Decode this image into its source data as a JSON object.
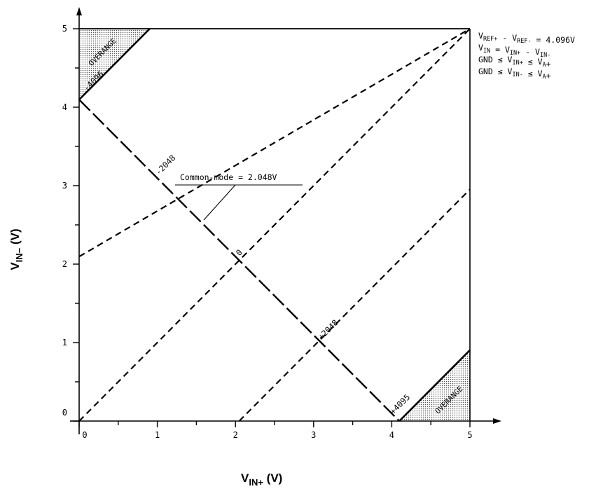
{
  "chart_data": {
    "type": "line",
    "title": "",
    "xlabel": {
      "main": "V",
      "sub": "IN+",
      "unit": "(V)"
    },
    "ylabel": {
      "main": "V",
      "sub": "IN−",
      "unit": "(V)"
    },
    "xlim": [
      0,
      5
    ],
    "ylim": [
      0,
      5
    ],
    "x_ticks": [
      "0",
      "1",
      "2",
      "3",
      "4",
      "5"
    ],
    "y_ticks": [
      "0",
      "1",
      "2",
      "3",
      "4",
      "5"
    ],
    "grid": false,
    "series": [
      {
        "style": "dashed",
        "x": [
          0,
          5
        ],
        "y": [
          2.096,
          5
        ]
      },
      {
        "style": "dashed",
        "x": [
          0,
          5
        ],
        "y": [
          0,
          5
        ]
      },
      {
        "style": "dashed",
        "x": [
          2.048,
          5
        ],
        "y": [
          0,
          2.952
        ]
      },
      {
        "style": "long-dash",
        "x": [
          0,
          4.096
        ],
        "y": [
          4.096,
          0
        ]
      },
      {
        "style": "solid",
        "x": [
          0,
          0.904
        ],
        "y": [
          4.096,
          5
        ]
      },
      {
        "style": "solid",
        "x": [
          4.096,
          5
        ],
        "y": [
          0,
          0.904
        ]
      }
    ],
    "code_labels": [
      {
        "text": "-4096",
        "x": 0.1,
        "y": 4.2
      },
      {
        "text": "-2048",
        "x": 1.02,
        "y": 3.13
      },
      {
        "text": "0",
        "x": 2.05,
        "y": 2.1
      },
      {
        "text": "+2048",
        "x": 3.1,
        "y": 1.03
      },
      {
        "text": "+4095",
        "x": 4.02,
        "y": 0.08
      }
    ],
    "regions": [
      {
        "label": "OVERANGE",
        "vertices": [
          [
            0,
            5
          ],
          [
            0,
            4.096
          ],
          [
            0.904,
            5
          ]
        ]
      },
      {
        "label": "OVERANGE",
        "vertices": [
          [
            4.096,
            0
          ],
          [
            5,
            0
          ],
          [
            5,
            0.904
          ]
        ]
      }
    ],
    "callout": {
      "text": "Common-mode = 2.048V"
    },
    "notes": [
      [
        {
          "t": "V"
        },
        {
          "t": "REF+",
          "s": 1
        },
        {
          "t": " - V"
        },
        {
          "t": "REF-",
          "s": 1
        },
        {
          "t": " = 4.096V"
        }
      ],
      [
        {
          "t": "V"
        },
        {
          "t": "IN",
          "s": 1
        },
        {
          "t": " = V"
        },
        {
          "t": "IN+",
          "s": 1
        },
        {
          "t": " - V"
        },
        {
          "t": "IN-",
          "s": 1
        }
      ],
      [
        {
          "t": "GND ≤ V"
        },
        {
          "t": "IN+",
          "s": 1
        },
        {
          "t": " ≤ V"
        },
        {
          "t": "A",
          "s": 1
        },
        {
          "t": "+"
        }
      ],
      [
        {
          "t": "GND ≤ V"
        },
        {
          "t": "IN-",
          "s": 1
        },
        {
          "t": " ≤ V"
        },
        {
          "t": "A",
          "s": 1
        },
        {
          "t": "+"
        }
      ]
    ]
  }
}
